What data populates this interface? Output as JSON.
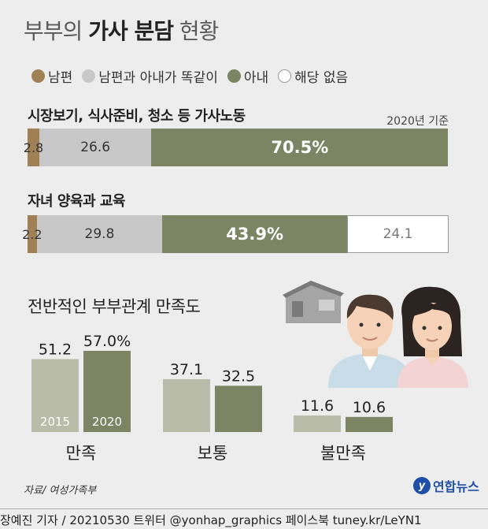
{
  "title": {
    "regular_prefix": "부부의 ",
    "bold": "가사 분담",
    "regular_suffix": " 현황"
  },
  "legend": [
    {
      "label": "남편",
      "color": "#a08055"
    },
    {
      "label": "남편과 아내가 똑같이",
      "color": "#c8c8c8"
    },
    {
      "label": "아내",
      "color": "#7c8464"
    },
    {
      "label": "해당 없음",
      "color": "#ffffff"
    }
  ],
  "note": "2020년 기준",
  "chart_data": [
    {
      "type": "bar",
      "subtype": "stacked-100",
      "rows": [
        {
          "label": "시장보기, 식사준비, 청소 등 가사노동",
          "values": [
            2.8,
            26.6,
            70.5
          ],
          "value_labels": [
            "2.8",
            "26.6",
            "70.5%"
          ]
        },
        {
          "label": "자녀 양육과 교육",
          "values": [
            2.2,
            29.8,
            43.9,
            24.1
          ],
          "value_labels": [
            "2.2",
            "29.8",
            "43.9%",
            "24.1"
          ]
        }
      ],
      "series": [
        {
          "name": "남편",
          "color": "#a08055"
        },
        {
          "name": "남편과 아내가 똑같이",
          "color": "#c8c8c8"
        },
        {
          "name": "아내",
          "color": "#7c8464"
        },
        {
          "name": "해당 없음",
          "color": "#ffffff"
        }
      ]
    },
    {
      "type": "bar",
      "title": "전반적인 부부관계 만족도",
      "categories": [
        "만족",
        "보통",
        "불만족"
      ],
      "series": [
        {
          "name": "2015",
          "values": [
            51.2,
            37.1,
            11.6
          ],
          "color": "#b8bca8"
        },
        {
          "name": "2020",
          "values": [
            57.0,
            32.5,
            10.6
          ],
          "color": "#7c8464"
        }
      ],
      "value_labels": [
        [
          "51.2",
          "37.1",
          "11.6"
        ],
        [
          "57.0%",
          "32.5",
          "10.6"
        ]
      ],
      "ylim": [
        0,
        60
      ]
    }
  ],
  "source": "자료/ 여성가족부",
  "logo": {
    "mark": "y",
    "text": "연합뉴스"
  },
  "footer": "장예진 기자 / 20210530 트위터 @yonhap_graphics  페이스북 tuney.kr/LeYN1"
}
